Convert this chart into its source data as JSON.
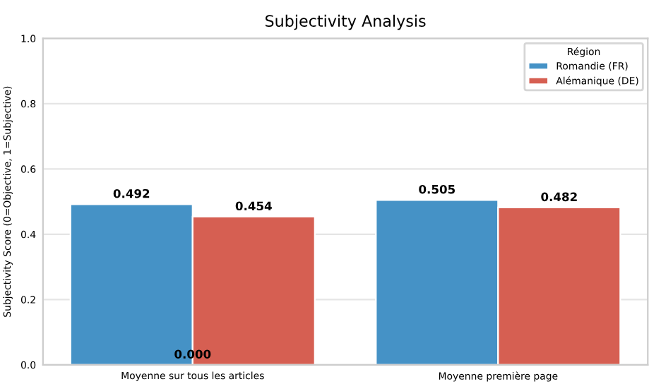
{
  "chart_data": {
    "type": "bar",
    "title": "Subjectivity Analysis",
    "ylabel": "Subjectivity Score (0=Objective, 1=Subjective)",
    "legend_title": "Région",
    "categories": [
      "Moyenne sur tous les articles",
      "Moyenne première page"
    ],
    "series": [
      {
        "name": "Romandie (FR)",
        "color": "#4592c6",
        "values": [
          0.492,
          0.505
        ]
      },
      {
        "name": "Alémanique (DE)",
        "color": "#d65f52",
        "values": [
          0.454,
          0.482
        ]
      }
    ],
    "data_labels": true,
    "annotations": [
      {
        "text": "0.000",
        "x": "Moyenne sur tous les articles",
        "y": 0
      }
    ],
    "ylim": [
      0,
      1.0
    ],
    "yticks": [
      {
        "value": 0,
        "label": "0.0"
      },
      0.2,
      0.4,
      0.6,
      0.8,
      {
        "value": 1,
        "label": "1.0"
      }
    ],
    "grid": "y",
    "legend": "top right"
  }
}
